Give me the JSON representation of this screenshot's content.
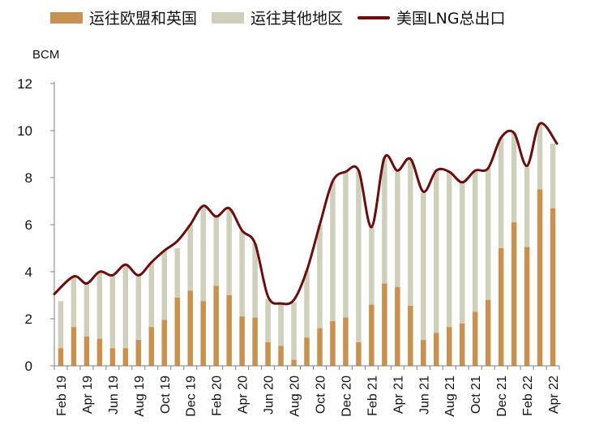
{
  "chart_data": {
    "type": "bar",
    "stacked": true,
    "ylabel": "BCM",
    "ylim": [
      0,
      12
    ],
    "yticks": [
      0,
      2,
      4,
      6,
      8,
      10,
      12
    ],
    "categories": [
      "Feb 19",
      "Mar 19",
      "Apr 19",
      "May 19",
      "Jun 19",
      "Jul 19",
      "Aug 19",
      "Sep 19",
      "Oct 19",
      "Nov 19",
      "Dec 19",
      "Jan 20",
      "Feb 20",
      "Mar 20",
      "Apr 20",
      "May 20",
      "Jun 20",
      "Jul 20",
      "Aug 20",
      "Sep 20",
      "Oct 20",
      "Nov 20",
      "Dec 20",
      "Jan 21",
      "Feb 21",
      "Mar 21",
      "Apr 21",
      "May 21",
      "Jun 21",
      "Jul 21",
      "Aug 21",
      "Sep 21",
      "Oct 21",
      "Nov 21",
      "Dec 21",
      "Jan 22",
      "Feb 22",
      "Mar 22",
      "Apr 22"
    ],
    "tick_labels": [
      "Feb 19",
      "Apr 19",
      "Jun 19",
      "Aug 19",
      "Oct 19",
      "Dec 19",
      "Feb 20",
      "Apr 20",
      "Jun 20",
      "Aug 20",
      "Oct 20",
      "Dec 20",
      "Feb 21",
      "Apr 21",
      "Jun 21",
      "Aug 21",
      "Oct 21",
      "Dec 21",
      "Feb 22",
      "Apr 22"
    ],
    "series": [
      {
        "name": "运往欧盟和英国",
        "kind": "bar",
        "color": "#C8914F",
        "values": [
          0.75,
          1.65,
          1.25,
          1.15,
          0.75,
          0.75,
          1.1,
          1.65,
          1.95,
          2.9,
          3.2,
          2.75,
          3.4,
          3.0,
          2.1,
          2.05,
          1.0,
          0.85,
          0.25,
          1.2,
          1.6,
          1.9,
          2.05,
          1.0,
          2.6,
          3.5,
          3.35,
          2.55,
          1.1,
          1.4,
          1.65,
          1.8,
          2.3,
          2.8,
          5.0,
          6.1,
          5.05,
          7.5,
          6.7
        ]
      },
      {
        "name": "运往其他地区",
        "kind": "bar",
        "color": "#CFCFBC",
        "values": [
          2.0,
          2.15,
          2.25,
          2.85,
          3.1,
          3.55,
          2.75,
          2.75,
          2.95,
          2.1,
          2.8,
          4.05,
          2.95,
          3.65,
          3.65,
          3.15,
          1.85,
          1.85,
          2.45,
          2.85,
          4.4,
          5.95,
          6.2,
          7.3,
          3.3,
          5.35,
          4.95,
          6.25,
          6.25,
          6.9,
          6.6,
          6.0,
          6.0,
          5.6,
          4.7,
          3.8,
          3.5,
          2.8,
          2.75
        ]
      },
      {
        "name": "美国LNG总出口",
        "kind": "line",
        "color": "#6B0D0D",
        "values": [
          3.05,
          3.8,
          3.5,
          4.0,
          3.85,
          4.3,
          3.85,
          4.4,
          4.9,
          5.3,
          6.0,
          6.8,
          6.35,
          6.7,
          5.75,
          5.2,
          2.95,
          2.65,
          2.8,
          4.05,
          6.0,
          7.85,
          8.25,
          8.3,
          5.9,
          8.85,
          8.3,
          8.8,
          7.4,
          8.3,
          8.25,
          7.8,
          8.3,
          8.4,
          9.7,
          9.9,
          8.5,
          10.3,
          9.45
        ]
      }
    ],
    "grid": false,
    "legend": "top"
  }
}
